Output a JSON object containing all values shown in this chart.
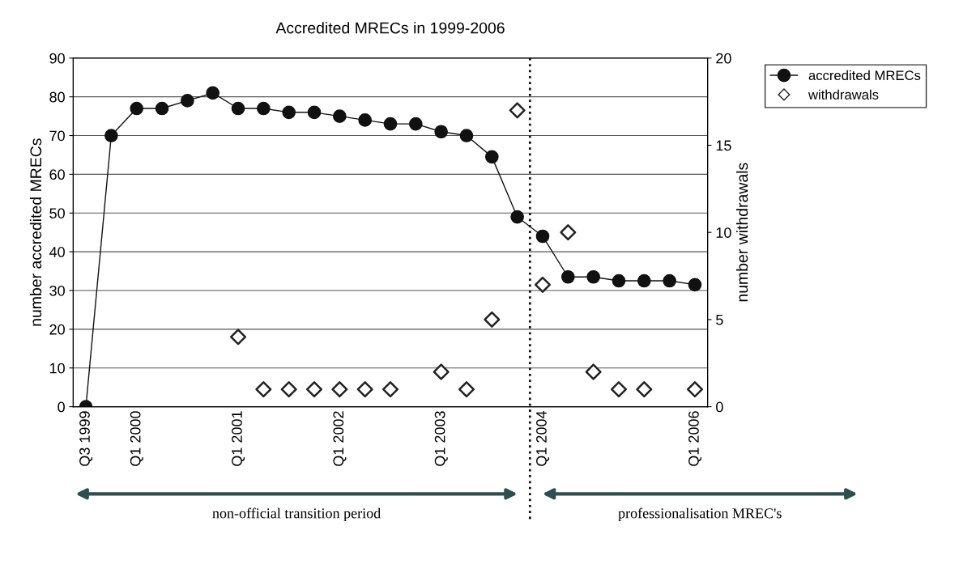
{
  "chart_data": {
    "type": "line",
    "title": "Accredited MRECs in 1999-2006",
    "categories": [
      "Q3 1999",
      null,
      "Q1 2000",
      null,
      null,
      null,
      "Q1 2001",
      null,
      null,
      null,
      "Q1 2002",
      null,
      null,
      null,
      "Q1 2003",
      null,
      null,
      null,
      "Q1 2004",
      null,
      null,
      null,
      null,
      null,
      "Q1 2006"
    ],
    "series": [
      {
        "name": "accredited MRECs",
        "color": "#111111",
        "marker": "circle",
        "line_style": "solid",
        "values": [
          0,
          70,
          77,
          77,
          79,
          81,
          77,
          77,
          76,
          76,
          75,
          74,
          73,
          73,
          71,
          70,
          64.5,
          49,
          44,
          33.5,
          33.5,
          32.5,
          32.5,
          32.5,
          31.5
        ]
      },
      {
        "name": "withdrawals",
        "color": "#222222",
        "type": "scatter",
        "marker": "diamond",
        "axis": "y2",
        "values": [
          null,
          null,
          null,
          null,
          null,
          null,
          4,
          1,
          1,
          1,
          1,
          1,
          1,
          null,
          2,
          1,
          5,
          17,
          7,
          10,
          2,
          1,
          1,
          null,
          1
        ]
      }
    ],
    "ylabel": "number accredited MRECs",
    "y2label": "number withdrawals",
    "ylim": [
      0,
      90
    ],
    "yticks": [
      0,
      10,
      20,
      30,
      40,
      50,
      60,
      70,
      80,
      90
    ],
    "y2lim": [
      0,
      20
    ],
    "y2ticks": [
      0,
      5,
      10,
      15,
      20
    ],
    "grid": "y",
    "legend": "top right",
    "annotations": [
      "non-official transition period",
      "professionalisation MREC's"
    ]
  }
}
